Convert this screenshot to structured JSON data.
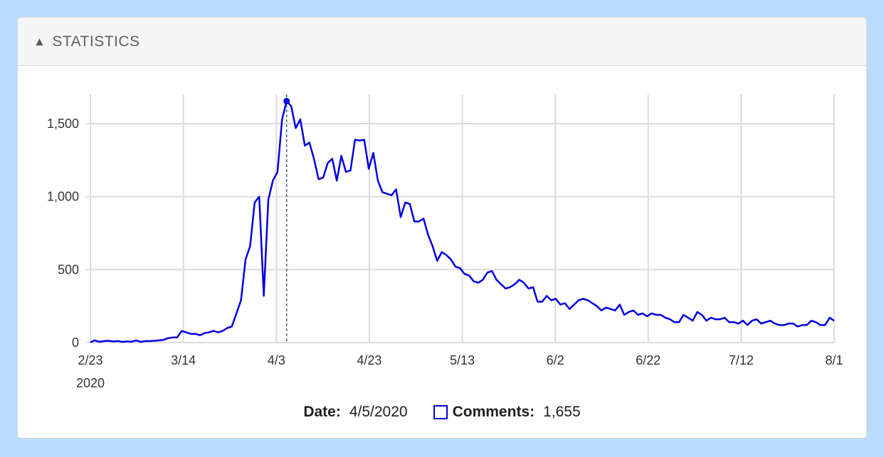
{
  "panel": {
    "title": "STATISTICS",
    "collapse_icon": "triangle-up-icon"
  },
  "chart_data": {
    "type": "line",
    "x_labels": [
      "2/23",
      "3/14",
      "4/3",
      "4/23",
      "5/13",
      "6/2",
      "6/22",
      "7/12",
      "8/1"
    ],
    "x_year_label": "2020",
    "y_ticks": [
      "0",
      "500",
      "1,000",
      "1,500"
    ],
    "ylim": [
      0,
      1700
    ],
    "grid": true,
    "line_color": "#0000e0",
    "series": [
      {
        "name": "Comments",
        "x_start": "2/23/2020",
        "x_end": "8/1/2020",
        "values": [
          2,
          15,
          5,
          10,
          12,
          8,
          10,
          5,
          8,
          6,
          15,
          5,
          10,
          10,
          12,
          15,
          18,
          30,
          35,
          35,
          80,
          70,
          60,
          60,
          50,
          65,
          70,
          80,
          70,
          80,
          100,
          110,
          200,
          290,
          570,
          660,
          960,
          1000,
          320,
          980,
          1110,
          1170,
          1530,
          1655,
          1620,
          1470,
          1530,
          1350,
          1370,
          1260,
          1120,
          1130,
          1230,
          1260,
          1110,
          1280,
          1170,
          1180,
          1390,
          1385,
          1390,
          1190,
          1300,
          1110,
          1030,
          1020,
          1010,
          1050,
          860,
          960,
          950,
          830,
          830,
          850,
          740,
          660,
          560,
          620,
          600,
          570,
          520,
          510,
          470,
          460,
          420,
          410,
          430,
          480,
          490,
          430,
          400,
          370,
          380,
          400,
          430,
          410,
          370,
          380,
          280,
          280,
          320,
          290,
          300,
          260,
          270,
          230,
          260,
          290,
          300,
          290,
          270,
          250,
          220,
          240,
          230,
          220,
          260,
          190,
          210,
          220,
          190,
          200,
          180,
          200,
          190,
          190,
          170,
          160,
          140,
          140,
          190,
          170,
          150,
          210,
          190,
          150,
          170,
          160,
          160,
          170,
          140,
          140,
          130,
          150,
          120,
          150,
          160,
          130,
          140,
          150,
          130,
          120,
          120,
          130,
          130,
          110,
          120,
          120,
          150,
          140,
          120,
          120,
          170,
          150
        ]
      }
    ],
    "hover": {
      "date": "4/5/2020",
      "index": 43,
      "value": 1655
    }
  },
  "legend": {
    "date_label": "Date:",
    "date_value": "4/5/2020",
    "series_label": "Comments:",
    "series_value": "1,655"
  }
}
